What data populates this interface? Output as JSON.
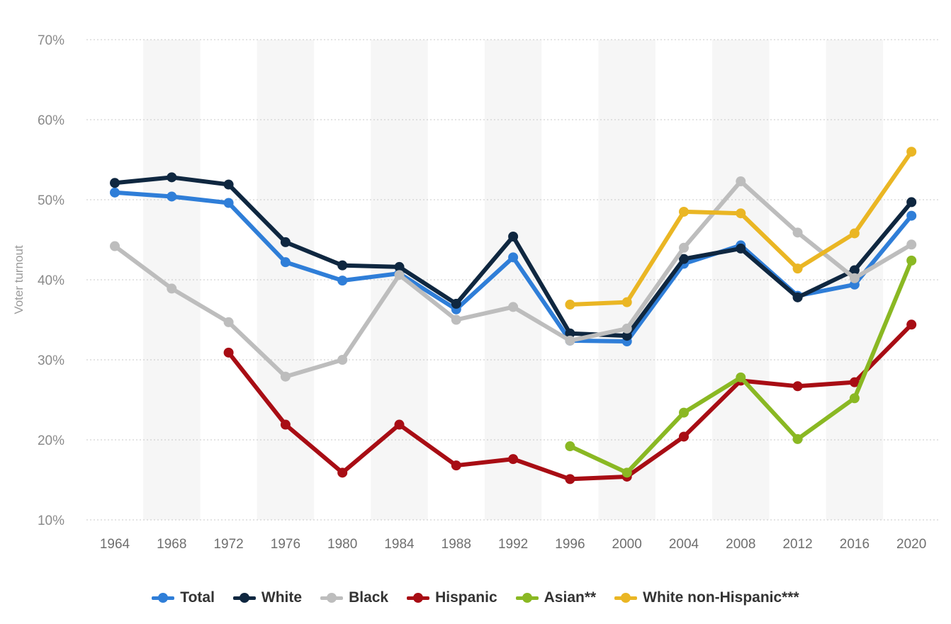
{
  "chart_data": {
    "type": "line",
    "ylabel": "Voter turnout",
    "ylim": [
      10,
      70
    ],
    "y_ticks": [
      "10%",
      "20%",
      "30%",
      "40%",
      "50%",
      "60%",
      "70%"
    ],
    "y_tick_values": [
      10,
      20,
      30,
      40,
      50,
      60,
      70
    ],
    "categories": [
      "1964",
      "1968",
      "1972",
      "1976",
      "1980",
      "1984",
      "1988",
      "1992",
      "1996",
      "2000",
      "2004",
      "2008",
      "2012",
      "2016",
      "2020"
    ],
    "grid": true,
    "legend_position": "bottom",
    "series": [
      {
        "name": "Total",
        "color": "#2f7ed8",
        "values": [
          50.9,
          50.4,
          49.6,
          42.2,
          39.9,
          40.8,
          36.3,
          42.8,
          32.4,
          32.3,
          42.0,
          44.3,
          38.0,
          39.4,
          48.0
        ]
      },
      {
        "name": "White",
        "color": "#0f2740",
        "values": [
          52.1,
          52.8,
          51.9,
          44.7,
          41.8,
          41.6,
          37.0,
          45.4,
          33.3,
          33.0,
          42.6,
          43.9,
          37.8,
          41.2,
          49.7
        ]
      },
      {
        "name": "Black",
        "color": "#bdbdbd",
        "values": [
          44.2,
          38.9,
          34.7,
          27.9,
          30.0,
          40.6,
          35.0,
          36.6,
          32.4,
          33.9,
          44.0,
          52.3,
          45.9,
          40.2,
          44.4
        ]
      },
      {
        "name": "Hispanic",
        "color": "#a80d14",
        "values": [
          null,
          null,
          30.9,
          21.9,
          15.9,
          21.9,
          16.8,
          17.6,
          15.1,
          15.4,
          20.4,
          27.4,
          26.7,
          27.2,
          34.4
        ]
      },
      {
        "name": "Asian**",
        "color": "#8ab823",
        "values": [
          null,
          null,
          null,
          null,
          null,
          null,
          null,
          null,
          19.2,
          15.9,
          23.4,
          27.8,
          20.1,
          25.2,
          42.4
        ]
      },
      {
        "name": "White non-Hispanic***",
        "color": "#eab624",
        "values": [
          null,
          null,
          null,
          null,
          null,
          null,
          null,
          null,
          36.9,
          37.2,
          48.5,
          48.3,
          41.4,
          45.8,
          56.0
        ]
      }
    ]
  }
}
